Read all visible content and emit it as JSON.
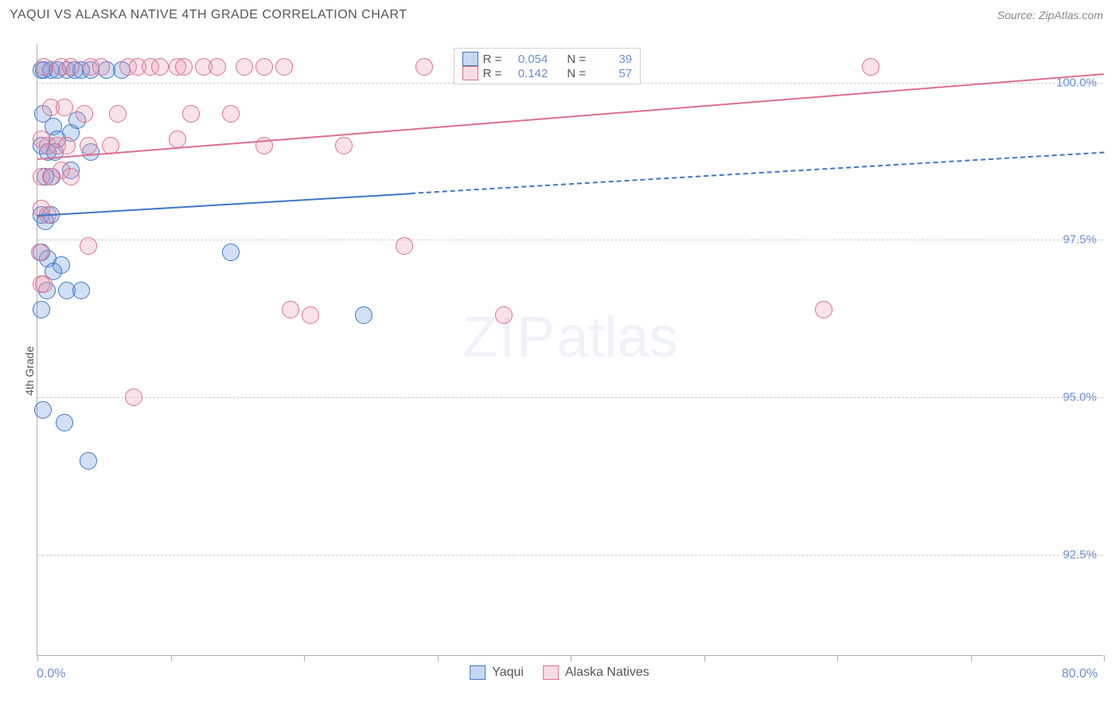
{
  "header": {
    "title": "YAQUI VS ALASKA NATIVE 4TH GRADE CORRELATION CHART",
    "source_label": "Source: ZipAtlas.com"
  },
  "chart": {
    "type": "scatter",
    "ylabel": "4th Grade",
    "watermark": {
      "bold": "ZIP",
      "light": "atlas"
    },
    "background_color": "#ffffff",
    "grid_color": "#cccccc",
    "axis_color": "#b0b0b0",
    "label_color": "#6b8fd4",
    "xlim": [
      0,
      80
    ],
    "ylim": [
      90.9,
      100.6
    ],
    "x_axis_left_label": "0.0%",
    "x_axis_right_label": "80.0%",
    "xtick_positions": [
      0,
      10,
      20,
      30,
      40,
      50,
      60,
      70,
      80
    ],
    "ytick_positions": [
      92.5,
      95.0,
      97.5,
      100.0
    ],
    "ytick_labels": [
      "92.5%",
      "95.0%",
      "97.5%",
      "100.0%"
    ],
    "marker_radius": 11,
    "marker_stroke_width": 1.5,
    "marker_fill_opacity": 0.28,
    "series": [
      {
        "name": "Yaqui",
        "color": "#5b8fd6",
        "stroke": "#3f76c8",
        "r_value": "0.054",
        "n_value": "39",
        "trend": {
          "y_at_x0": 97.9,
          "y_at_x80": 98.9,
          "solid_until_x": 28
        },
        "points": [
          [
            0.3,
            100.2
          ],
          [
            0.5,
            100.2
          ],
          [
            1.0,
            100.2
          ],
          [
            1.5,
            100.2
          ],
          [
            2.2,
            100.2
          ],
          [
            2.8,
            100.2
          ],
          [
            3.3,
            100.2
          ],
          [
            4.0,
            100.2
          ],
          [
            5.2,
            100.2
          ],
          [
            6.3,
            100.2
          ],
          [
            0.4,
            99.5
          ],
          [
            1.2,
            99.3
          ],
          [
            2.5,
            99.2
          ],
          [
            3.0,
            99.4
          ],
          [
            0.3,
            99.0
          ],
          [
            0.8,
            98.9
          ],
          [
            1.3,
            98.9
          ],
          [
            1.5,
            99.1
          ],
          [
            4.0,
            98.9
          ],
          [
            0.6,
            98.5
          ],
          [
            1.1,
            98.5
          ],
          [
            2.5,
            98.6
          ],
          [
            0.3,
            97.9
          ],
          [
            0.6,
            97.8
          ],
          [
            1.0,
            97.9
          ],
          [
            0.3,
            97.3
          ],
          [
            0.8,
            97.2
          ],
          [
            1.2,
            97.0
          ],
          [
            1.8,
            97.1
          ],
          [
            14.5,
            97.3
          ],
          [
            0.7,
            96.7
          ],
          [
            2.2,
            96.7
          ],
          [
            3.3,
            96.7
          ],
          [
            0.3,
            96.4
          ],
          [
            24.5,
            96.3
          ],
          [
            2.0,
            94.6
          ],
          [
            0.4,
            94.8
          ],
          [
            3.8,
            94.0
          ]
        ]
      },
      {
        "name": "Alaska Natives",
        "color": "#e99ab0",
        "stroke": "#dd6f8e",
        "r_value": "0.142",
        "n_value": "57",
        "trend": {
          "y_at_x0": 98.8,
          "y_at_x80": 100.15,
          "solid_until_x": 80
        },
        "points": [
          [
            0.5,
            100.25
          ],
          [
            1.8,
            100.25
          ],
          [
            2.5,
            100.25
          ],
          [
            4.0,
            100.25
          ],
          [
            4.8,
            100.25
          ],
          [
            6.8,
            100.25
          ],
          [
            7.5,
            100.25
          ],
          [
            8.5,
            100.25
          ],
          [
            9.2,
            100.25
          ],
          [
            10.5,
            100.25
          ],
          [
            11.0,
            100.25
          ],
          [
            12.5,
            100.25
          ],
          [
            13.5,
            100.25
          ],
          [
            15.5,
            100.25
          ],
          [
            17.0,
            100.25
          ],
          [
            18.5,
            100.25
          ],
          [
            29.0,
            100.25
          ],
          [
            33.5,
            100.25
          ],
          [
            34.8,
            100.25
          ],
          [
            36.5,
            100.25
          ],
          [
            38.0,
            100.25
          ],
          [
            40.5,
            100.25
          ],
          [
            41.5,
            100.25
          ],
          [
            62.5,
            100.25
          ],
          [
            1.0,
            99.6
          ],
          [
            2.0,
            99.6
          ],
          [
            3.5,
            99.5
          ],
          [
            6.0,
            99.5
          ],
          [
            11.5,
            99.5
          ],
          [
            14.5,
            99.5
          ],
          [
            0.3,
            99.1
          ],
          [
            0.8,
            99.0
          ],
          [
            1.5,
            99.0
          ],
          [
            2.2,
            99.0
          ],
          [
            3.8,
            99.0
          ],
          [
            5.5,
            99.0
          ],
          [
            10.5,
            99.1
          ],
          [
            17.0,
            99.0
          ],
          [
            23.0,
            99.0
          ],
          [
            0.3,
            98.5
          ],
          [
            1.0,
            98.5
          ],
          [
            1.8,
            98.6
          ],
          [
            2.5,
            98.5
          ],
          [
            0.3,
            98.0
          ],
          [
            0.8,
            97.9
          ],
          [
            0.2,
            97.3
          ],
          [
            3.8,
            97.4
          ],
          [
            0.3,
            96.8
          ],
          [
            0.5,
            96.8
          ],
          [
            27.5,
            97.4
          ],
          [
            19.0,
            96.4
          ],
          [
            20.5,
            96.3
          ],
          [
            35.0,
            96.3
          ],
          [
            59.0,
            96.4
          ],
          [
            7.2,
            95.0
          ]
        ]
      }
    ],
    "stats_box": {
      "r_label": "R =",
      "n_label": "N ="
    },
    "bottom_legend": [
      {
        "label": "Yaqui",
        "color": "#5b8fd6",
        "stroke": "#3f76c8"
      },
      {
        "label": "Alaska Natives",
        "color": "#e99ab0",
        "stroke": "#dd6f8e"
      }
    ]
  }
}
